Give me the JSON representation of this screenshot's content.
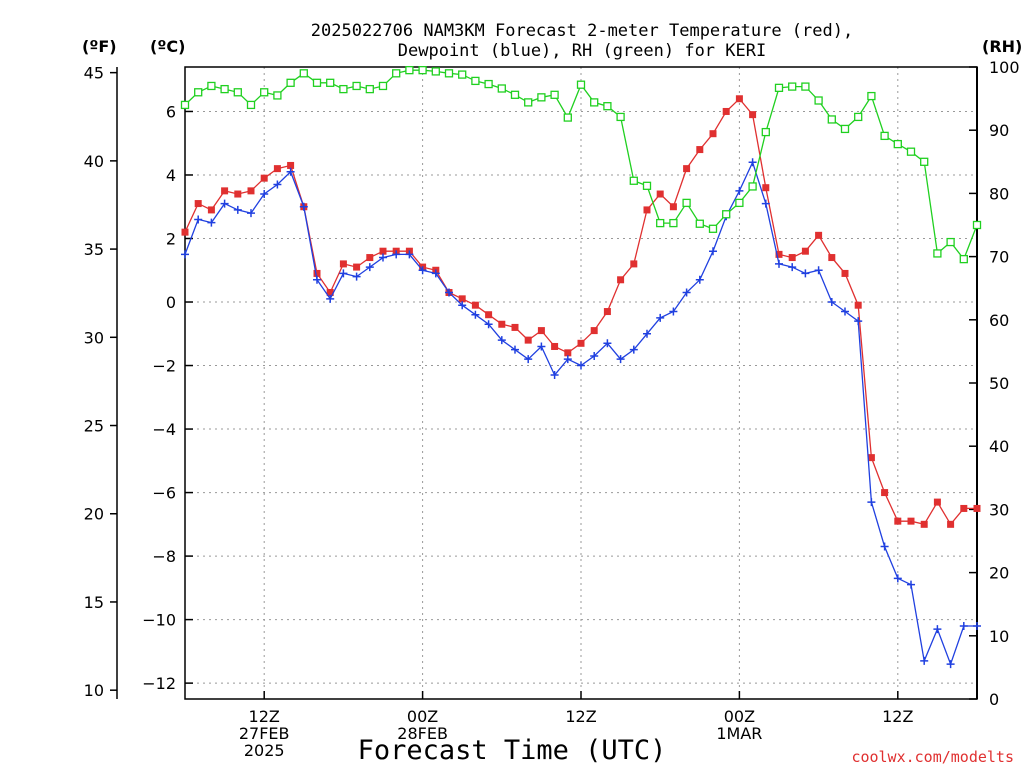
{
  "title_line1": "2025022706 NAM3KM Forecast 2-meter Temperature (red),",
  "title_line2": "Dewpoint (blue), RH (green) for KERI",
  "units": {
    "fahrenheit": "(ºF)",
    "celsius": "(ºC)",
    "rh": "(RH)"
  },
  "xlabel": "Forecast Time (UTC)",
  "credit": "coolwx.com/modelts",
  "colors": {
    "temperature": "#e03030",
    "dewpoint": "#2040e0",
    "rh": "#20d020",
    "grid": "#999999"
  },
  "chart_data": {
    "type": "line",
    "title": "2025022706 NAM3KM Forecast 2-meter Temperature (red), Dewpoint (blue), RH (green) for KERI",
    "xlabel": "Forecast Time (UTC)",
    "x_hours": [
      0,
      1,
      2,
      3,
      4,
      5,
      6,
      7,
      8,
      9,
      10,
      11,
      12,
      13,
      14,
      15,
      16,
      17,
      18,
      19,
      20,
      21,
      22,
      23,
      24,
      25,
      26,
      27,
      28,
      29,
      30,
      31,
      32,
      33,
      34,
      35,
      36,
      37,
      38,
      39,
      40,
      41,
      42,
      43,
      44,
      45,
      46,
      47,
      48,
      49,
      50,
      51,
      52,
      53,
      54,
      55,
      56,
      57,
      58,
      59,
      60
    ],
    "x_ticks": [
      {
        "hour": 6,
        "lines": [
          "12Z",
          "27FEB",
          "2025"
        ]
      },
      {
        "hour": 18,
        "lines": [
          "00Z",
          "28FEB"
        ]
      },
      {
        "hour": 30,
        "lines": [
          "12Z"
        ]
      },
      {
        "hour": 42,
        "lines": [
          "00Z",
          "1MAR"
        ]
      },
      {
        "hour": 54,
        "lines": [
          "12Z"
        ]
      }
    ],
    "left_axis_f": {
      "label": "(ºF)",
      "ticks": [
        10,
        15,
        20,
        25,
        30,
        35,
        40,
        45
      ]
    },
    "left_axis_c": {
      "label": "(ºC)",
      "ylim": [
        -12.5,
        7.4
      ],
      "ticks": [
        "6",
        "4",
        "2",
        "0",
        "−2",
        "−4",
        "−6",
        "−8",
        "−10",
        "−12"
      ]
    },
    "right_axis_rh": {
      "label": "(RH)",
      "ylim": [
        0,
        100
      ],
      "ticks": [
        "100",
        "90",
        "80",
        "70",
        "60",
        "50",
        "40",
        "30",
        "20",
        "10",
        "0"
      ]
    },
    "series": [
      {
        "name": "Temperature",
        "axis": "celsius",
        "marker": "filled-square",
        "values": [
          2.2,
          3.1,
          2.9,
          3.5,
          3.4,
          3.5,
          3.9,
          4.2,
          4.3,
          3.0,
          0.9,
          0.3,
          1.2,
          1.1,
          1.4,
          1.6,
          1.6,
          1.6,
          1.1,
          1.0,
          0.3,
          0.1,
          -0.1,
          -0.4,
          -0.7,
          -0.8,
          -1.2,
          -0.9,
          -1.4,
          -1.6,
          -1.3,
          -0.9,
          -0.3,
          0.7,
          1.2,
          2.9,
          3.4,
          3.0,
          4.2,
          4.8,
          5.3,
          6.0,
          6.4,
          5.9,
          3.6,
          1.5,
          1.4,
          1.6,
          2.1,
          1.4,
          0.9,
          -0.1,
          -4.9,
          -6.0,
          -6.9,
          -6.9,
          -7.0,
          -6.3,
          -7.0,
          -6.5,
          -6.5
        ]
      },
      {
        "name": "Dewpoint",
        "axis": "celsius",
        "marker": "plus",
        "values": [
          1.5,
          2.6,
          2.5,
          3.1,
          2.9,
          2.8,
          3.4,
          3.7,
          4.1,
          3.0,
          0.7,
          0.1,
          0.9,
          0.8,
          1.1,
          1.4,
          1.5,
          1.5,
          1.0,
          0.9,
          0.3,
          -0.1,
          -0.4,
          -0.7,
          -1.2,
          -1.5,
          -1.8,
          -1.4,
          -2.3,
          -1.8,
          -2.0,
          -1.7,
          -1.3,
          -1.8,
          -1.5,
          -1.0,
          -0.5,
          -0.3,
          0.3,
          0.7,
          1.6,
          2.7,
          3.5,
          4.4,
          3.1,
          1.2,
          1.1,
          0.9,
          1.0,
          0.0,
          -0.3,
          -0.6,
          -6.3,
          -7.7,
          -8.7,
          -8.9,
          -11.3,
          -10.3,
          -11.4,
          -10.2,
          -10.2
        ]
      },
      {
        "name": "RH",
        "axis": "rh",
        "marker": "open-square",
        "values": [
          94,
          96,
          97,
          96.5,
          96,
          94,
          96,
          95.5,
          97.5,
          99,
          97.5,
          97.5,
          96.5,
          97,
          96.5,
          97,
          99,
          99.5,
          99.5,
          99.3,
          99,
          98.8,
          97.8,
          97.3,
          96.6,
          95.6,
          94.4,
          95.2,
          95.6,
          92,
          97.2,
          94.4,
          93.8,
          92.1,
          82,
          81.2,
          75.3,
          75.3,
          78.5,
          75.2,
          74.4,
          76.7,
          78.5,
          81.1,
          89.7,
          96.7,
          96.9,
          96.9,
          94.7,
          91.7,
          90.2,
          92.1,
          95.4,
          89.1,
          87.8,
          86.6,
          85,
          70.5,
          72.3,
          69.6,
          75
        ]
      }
    ]
  }
}
